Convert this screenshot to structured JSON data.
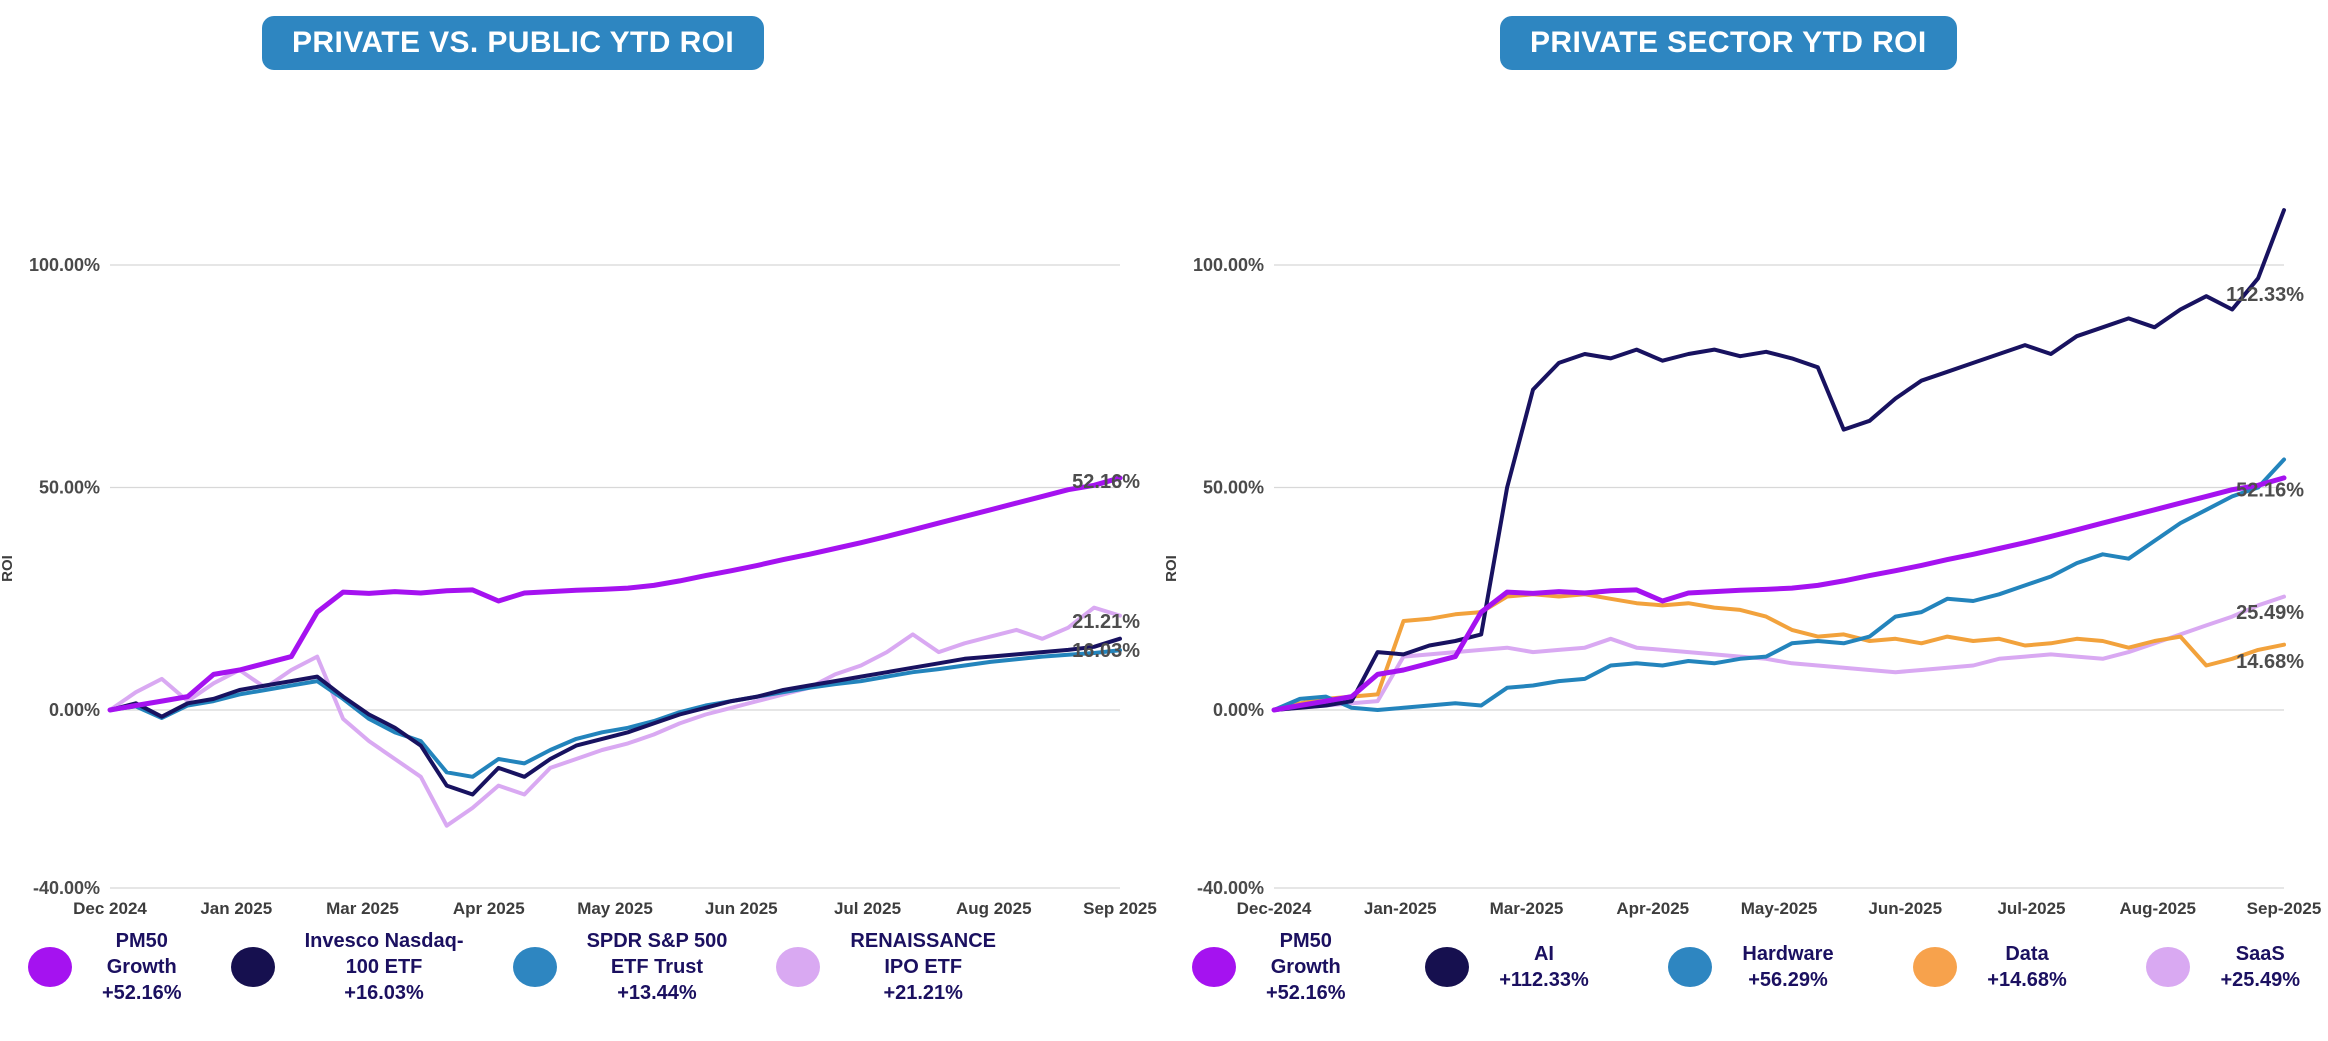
{
  "page": {
    "background": "#ffffff",
    "accent_badge_color": "#2E86C1",
    "annotation_text_color": "#4d4d4d"
  },
  "chart_data": [
    {
      "type": "line",
      "title": "PRIVATE VS. PUBLIC YTD ROI",
      "ylabel": "ROI",
      "xlabel": "",
      "ylim": [
        -40,
        100
      ],
      "grid": true,
      "legend_position": "bottom",
      "y_ticks": [
        {
          "label": "100.00%",
          "value": 100
        },
        {
          "label": "50.00%",
          "value": 50
        },
        {
          "label": "0.00%",
          "value": 0
        },
        {
          "label": "-40.00%",
          "value": -40
        }
      ],
      "x_labels": [
        "Dec 2024",
        "Jan 2025",
        "Mar 2025",
        "Apr 2025",
        "May 2025",
        "Jun 2025",
        "Jul 2025",
        "Aug 2025",
        "Sep 2025"
      ],
      "series": [
        {
          "name": "PM50 Growth",
          "color": "#A512F0",
          "width": 5,
          "values": [
            0,
            1,
            2,
            3,
            8,
            9,
            10.5,
            12,
            22,
            26.5,
            26.2,
            26.6,
            26.3,
            26.8,
            27,
            24.5,
            26.3,
            26.6,
            26.9,
            27.1,
            27.4,
            28,
            29,
            30.2,
            31.3,
            32.5,
            33.8,
            35,
            36.3,
            37.6,
            39,
            40.5,
            42,
            43.5,
            45,
            46.5,
            48,
            49.5,
            50.5,
            52.16
          ]
        },
        {
          "name": "Invesco Nasdaq-100 ETF",
          "color": "#181260",
          "width": 4,
          "values": [
            0,
            1.5,
            -1.5,
            1.5,
            2.5,
            4.5,
            5.5,
            6.5,
            7.5,
            3,
            -1,
            -4,
            -8,
            -17,
            -19,
            -13,
            -15,
            -11,
            -8,
            -6.5,
            -5,
            -3,
            -1,
            0.5,
            2,
            3,
            4.5,
            5.5,
            6.5,
            7.5,
            8.5,
            9.5,
            10.5,
            11.5,
            12,
            12.5,
            13,
            13.5,
            14.2,
            16.03
          ]
        },
        {
          "name": "SPDR S&P 500 ETF Trust",
          "color": "#2384BC",
          "width": 4,
          "values": [
            0,
            0.8,
            -1.8,
            1,
            2,
            3.5,
            4.5,
            5.5,
            6.5,
            2.5,
            -2,
            -5,
            -7,
            -14,
            -15,
            -11,
            -12,
            -9,
            -6.5,
            -5,
            -4,
            -2.5,
            -0.5,
            1,
            2,
            3,
            4,
            5,
            5.8,
            6.5,
            7.5,
            8.5,
            9.2,
            10,
            10.8,
            11.4,
            12,
            12.4,
            12.8,
            13.44
          ]
        },
        {
          "name": "RENAISSANCE IPO ETF",
          "color": "#D9A9F2",
          "width": 4,
          "values": [
            0,
            4,
            7,
            2,
            6,
            9,
            5,
            9,
            12,
            -2,
            -7,
            -11,
            -15,
            -26,
            -22,
            -17,
            -19,
            -13,
            -11,
            -9,
            -7.5,
            -5.5,
            -3,
            -1,
            0.5,
            2,
            3.5,
            5,
            8,
            10,
            13,
            17,
            13,
            15,
            16.5,
            18,
            16,
            18.5,
            23,
            21.21
          ]
        }
      ],
      "annotations": [
        {
          "text": "52.16%",
          "series": "PM50 Growth",
          "value": 52.16,
          "label_at": 51.5
        },
        {
          "text": "21.21%",
          "series": "RENAISSANCE IPO ETF",
          "value": 21.21,
          "label_at": 20.0
        },
        {
          "text": "16.03%",
          "series": "Invesco Nasdaq-100 ETF",
          "value": 16.03,
          "label_at": 13.5
        }
      ],
      "legend": [
        {
          "name": "PM50\nGrowth",
          "value": "+52.16%",
          "color": "#A512F0"
        },
        {
          "name": "Invesco Nasdaq-\n100 ETF",
          "value": "+16.03%",
          "color": "#16104F"
        },
        {
          "name": "SPDR S&P 500\nETF Trust",
          "value": "+13.44%",
          "color": "#2E86C1"
        },
        {
          "name": "RENAISSANCE\nIPO ETF",
          "value": "+21.21%",
          "color": "#D9A9F2"
        }
      ]
    },
    {
      "type": "line",
      "title": "PRIVATE SECTOR YTD ROI",
      "ylabel": "ROI",
      "xlabel": "",
      "ylim": [
        -40,
        100
      ],
      "grid": true,
      "legend_position": "bottom",
      "y_ticks": [
        {
          "label": "100.00%",
          "value": 100
        },
        {
          "label": "50.00%",
          "value": 50
        },
        {
          "label": "0.00%",
          "value": 0
        },
        {
          "label": "-40.00%",
          "value": -40
        }
      ],
      "x_labels": [
        "Dec-2024",
        "Jan-2025",
        "Mar-2025",
        "Apr-2025",
        "May-2025",
        "Jun-2025",
        "Jul-2025",
        "Aug-2025",
        "Sep-2025"
      ],
      "series": [
        {
          "name": "PM50 Growth",
          "color": "#A512F0",
          "width": 5,
          "values": [
            0,
            1,
            2,
            3,
            8,
            9,
            10.5,
            12,
            22,
            26.5,
            26.2,
            26.6,
            26.3,
            26.8,
            27,
            24.5,
            26.3,
            26.6,
            26.9,
            27.1,
            27.4,
            28,
            29,
            30.2,
            31.3,
            32.5,
            33.8,
            35,
            36.3,
            37.6,
            39,
            40.5,
            42,
            43.5,
            45,
            46.5,
            48,
            49.5,
            50.5,
            52.16
          ]
        },
        {
          "name": "AI",
          "color": "#181260",
          "width": 4,
          "values": [
            0,
            0.5,
            1,
            2,
            13,
            12.5,
            14.5,
            15.5,
            17,
            50,
            72,
            78,
            80,
            79,
            81,
            78.5,
            80,
            81,
            79.5,
            80.5,
            79,
            77,
            63,
            65,
            70,
            74,
            76,
            78,
            80,
            82,
            80,
            84,
            86,
            88,
            86,
            90,
            93,
            90,
            97,
            112.33
          ]
        },
        {
          "name": "Hardware",
          "color": "#2384BC",
          "width": 4,
          "values": [
            0,
            2.5,
            3,
            0.5,
            0,
            0.5,
            1,
            1.5,
            1,
            5,
            5.5,
            6.5,
            7,
            10,
            10.5,
            10,
            11,
            10.5,
            11.5,
            12,
            15,
            15.5,
            15,
            16.5,
            21,
            22,
            25,
            24.5,
            26,
            28,
            30,
            33,
            35,
            34,
            38,
            42,
            45,
            48,
            50,
            56.29
          ]
        },
        {
          "name": "Data",
          "color": "#F2A23C",
          "width": 4,
          "values": [
            0,
            1.5,
            2.5,
            3,
            3.5,
            20,
            20.5,
            21.5,
            22,
            25.5,
            26,
            25.5,
            26,
            25,
            24,
            23.5,
            24,
            23,
            22.5,
            21,
            18,
            16.5,
            17,
            15.5,
            16,
            15,
            16.5,
            15.5,
            16,
            14.5,
            15,
            16,
            15.5,
            14,
            15.5,
            16.5,
            10,
            11.5,
            13.5,
            14.68
          ]
        },
        {
          "name": "SaaS",
          "color": "#D9A9F2",
          "width": 4,
          "values": [
            0,
            0.5,
            1,
            1.5,
            2,
            12,
            12.5,
            13,
            13.5,
            14,
            13,
            13.5,
            14,
            16,
            14,
            13.5,
            13,
            12.5,
            12,
            11.5,
            10.5,
            10,
            9.5,
            9,
            8.5,
            9,
            9.5,
            10,
            11.5,
            12,
            12.5,
            12,
            11.5,
            13,
            15,
            17,
            19,
            21,
            23.5,
            25.49
          ]
        }
      ],
      "annotations": [
        {
          "text": "112.33%",
          "series": "AI",
          "value": 112.33,
          "label_at": 93.5
        },
        {
          "text": "52.16%",
          "series": "PM50 Growth",
          "value": 52.16,
          "label_at": 49.5
        },
        {
          "text": "25.49%",
          "series": "SaaS",
          "value": 25.49,
          "label_at": 22.0
        },
        {
          "text": "14.68%",
          "series": "Data",
          "value": 14.68,
          "label_at": 11.0
        }
      ],
      "legend": [
        {
          "name": "PM50\nGrowth",
          "value": "+52.16%",
          "color": "#A512F0"
        },
        {
          "name": "AI",
          "value": "+112.33%",
          "color": "#16104F"
        },
        {
          "name": "Hardware",
          "value": "+56.29%",
          "color": "#2E86C1"
        },
        {
          "name": "Data",
          "value": "+14.68%",
          "color": "#F7A24C"
        },
        {
          "name": "SaaS",
          "value": "+25.49%",
          "color": "#D9A9F2"
        }
      ]
    }
  ]
}
